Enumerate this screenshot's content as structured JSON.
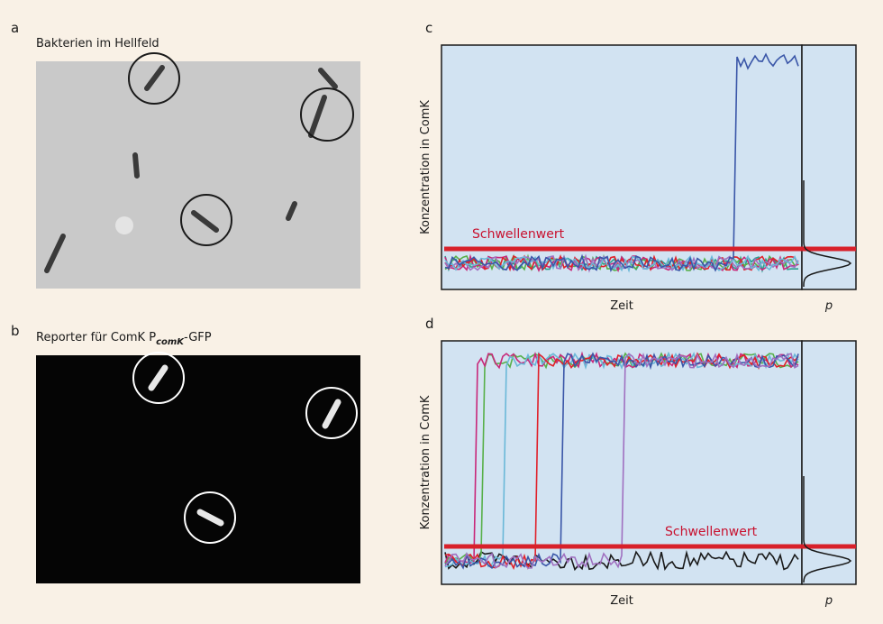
{
  "panel_a": {
    "label": "a",
    "caption": "Bakterien im Hellfeld"
  },
  "panel_b": {
    "label": "b",
    "caption": "Reporter für ComK P",
    "subscript": "comK",
    "caption_end": "-GFP"
  },
  "panel_c": {
    "label": "c",
    "y_label": "Konzentration in ComK",
    "threshold": "Schwellenwert",
    "x_label": "Zeit",
    "p_label": "p"
  },
  "panel_d": {
    "label": "d",
    "y_label": "Konzentration in ComK",
    "threshold": "Schwellenwert",
    "x_label": "Zeit",
    "p_label": "p"
  }
}
